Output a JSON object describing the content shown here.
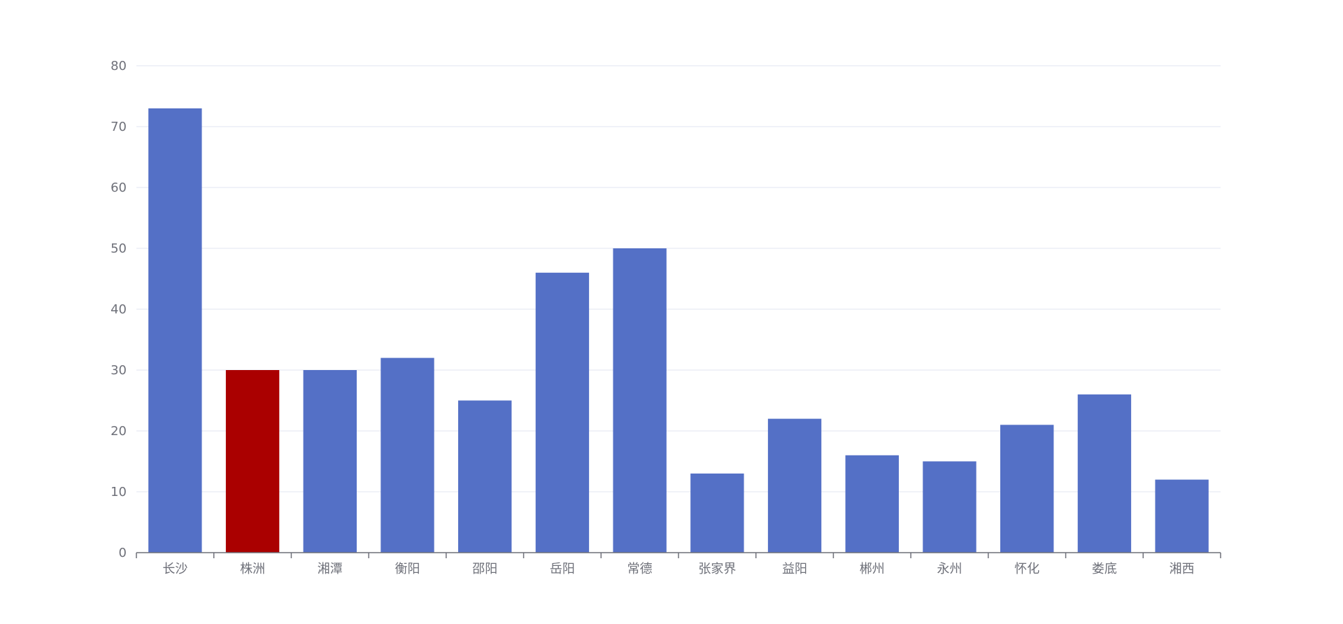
{
  "chart_data": {
    "type": "bar",
    "categories": [
      "长沙",
      "株洲",
      "湘潭",
      "衡阳",
      "邵阳",
      "岳阳",
      "常德",
      "张家界",
      "益阳",
      "郴州",
      "永州",
      "怀化",
      "娄底",
      "湘西"
    ],
    "values": [
      73,
      30,
      30,
      32,
      25,
      46,
      50,
      13,
      22,
      16,
      15,
      21,
      26,
      12
    ],
    "ylim": [
      0,
      80
    ],
    "yticks": [
      0,
      10,
      20,
      30,
      40,
      50,
      60,
      70,
      80
    ],
    "grid": true,
    "colors": {
      "bar": "#5470c6",
      "highlight": "#aa0000",
      "grid": "#e0e6f1",
      "axis": "#6e7079",
      "label": "#6e7079"
    },
    "highlight_category": "株洲",
    "title": "",
    "xlabel": "",
    "ylabel": ""
  }
}
